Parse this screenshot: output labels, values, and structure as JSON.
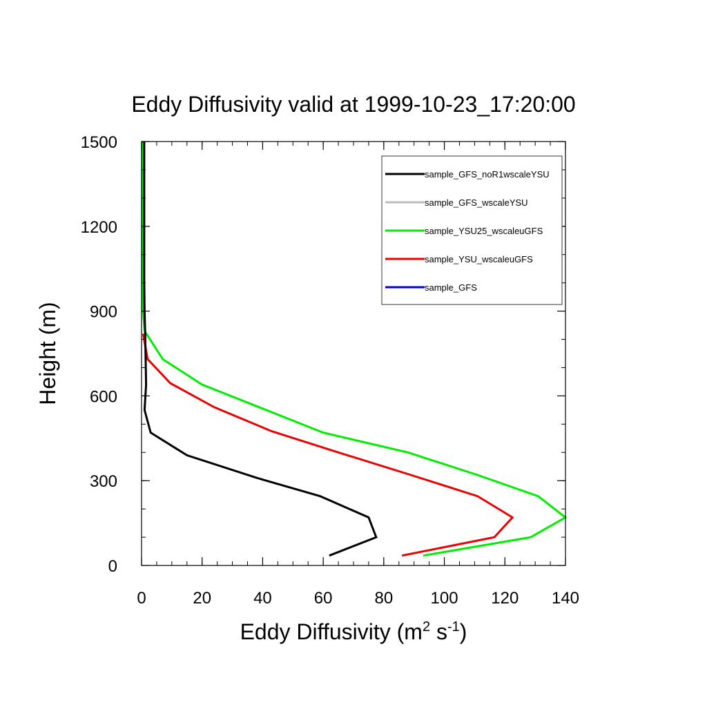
{
  "chart_data": {
    "type": "line",
    "title": "Eddy Diffusivity valid at 1999-10-23_17:20:00",
    "xlabel": "Eddy Diffusivity (m",
    "xlabel_sup1": "2",
    "xlabel_mid": " s",
    "xlabel_sup2": "-1",
    "xlabel_end": ")",
    "ylabel": "Height (m)",
    "xlim": [
      0,
      140
    ],
    "ylim": [
      0,
      1500
    ],
    "xticks": [
      "0",
      "20",
      "40",
      "60",
      "80",
      "100",
      "120",
      "140"
    ],
    "yticks": [
      "0",
      "300",
      "600",
      "900",
      "1200",
      "1500"
    ],
    "legend_position": "top-right",
    "series": [
      {
        "name": "sample_GFS_noR1wscaleYSU",
        "color": "#000000",
        "x": [
          62,
          77.5,
          75,
          59,
          38,
          15,
          3,
          1,
          1.5,
          1.2,
          1,
          0.9,
          0.9,
          0.9
        ],
        "y": [
          35,
          100,
          170,
          245,
          310,
          390,
          470,
          550,
          640,
          820,
          900,
          1000,
          1200,
          1500
        ]
      },
      {
        "name": "sample_GFS_wscaleYSU",
        "color": "#bbbbbb",
        "x": [],
        "y": []
      },
      {
        "name": "sample_YSU25_wscaleuGFS",
        "color": "#00ee00",
        "x": [
          93,
          128.5,
          140,
          131,
          111,
          88,
          60,
          40,
          20,
          7,
          1,
          0.5,
          0.4,
          0.3
        ],
        "y": [
          35,
          100,
          170,
          245,
          320,
          400,
          470,
          555,
          640,
          730,
          830,
          900,
          1200,
          1500
        ]
      },
      {
        "name": "sample_YSU_wscaleuGFS",
        "color": "#ee0000",
        "x": [
          86,
          116.5,
          122.5,
          111,
          89,
          65,
          43,
          24,
          9.5,
          2,
          0.5
        ],
        "y": [
          35,
          100,
          170,
          245,
          320,
          400,
          475,
          560,
          645,
          730,
          820
        ]
      },
      {
        "name": "sample_GFS",
        "color": "#0000ee",
        "x": [],
        "y": []
      }
    ]
  }
}
